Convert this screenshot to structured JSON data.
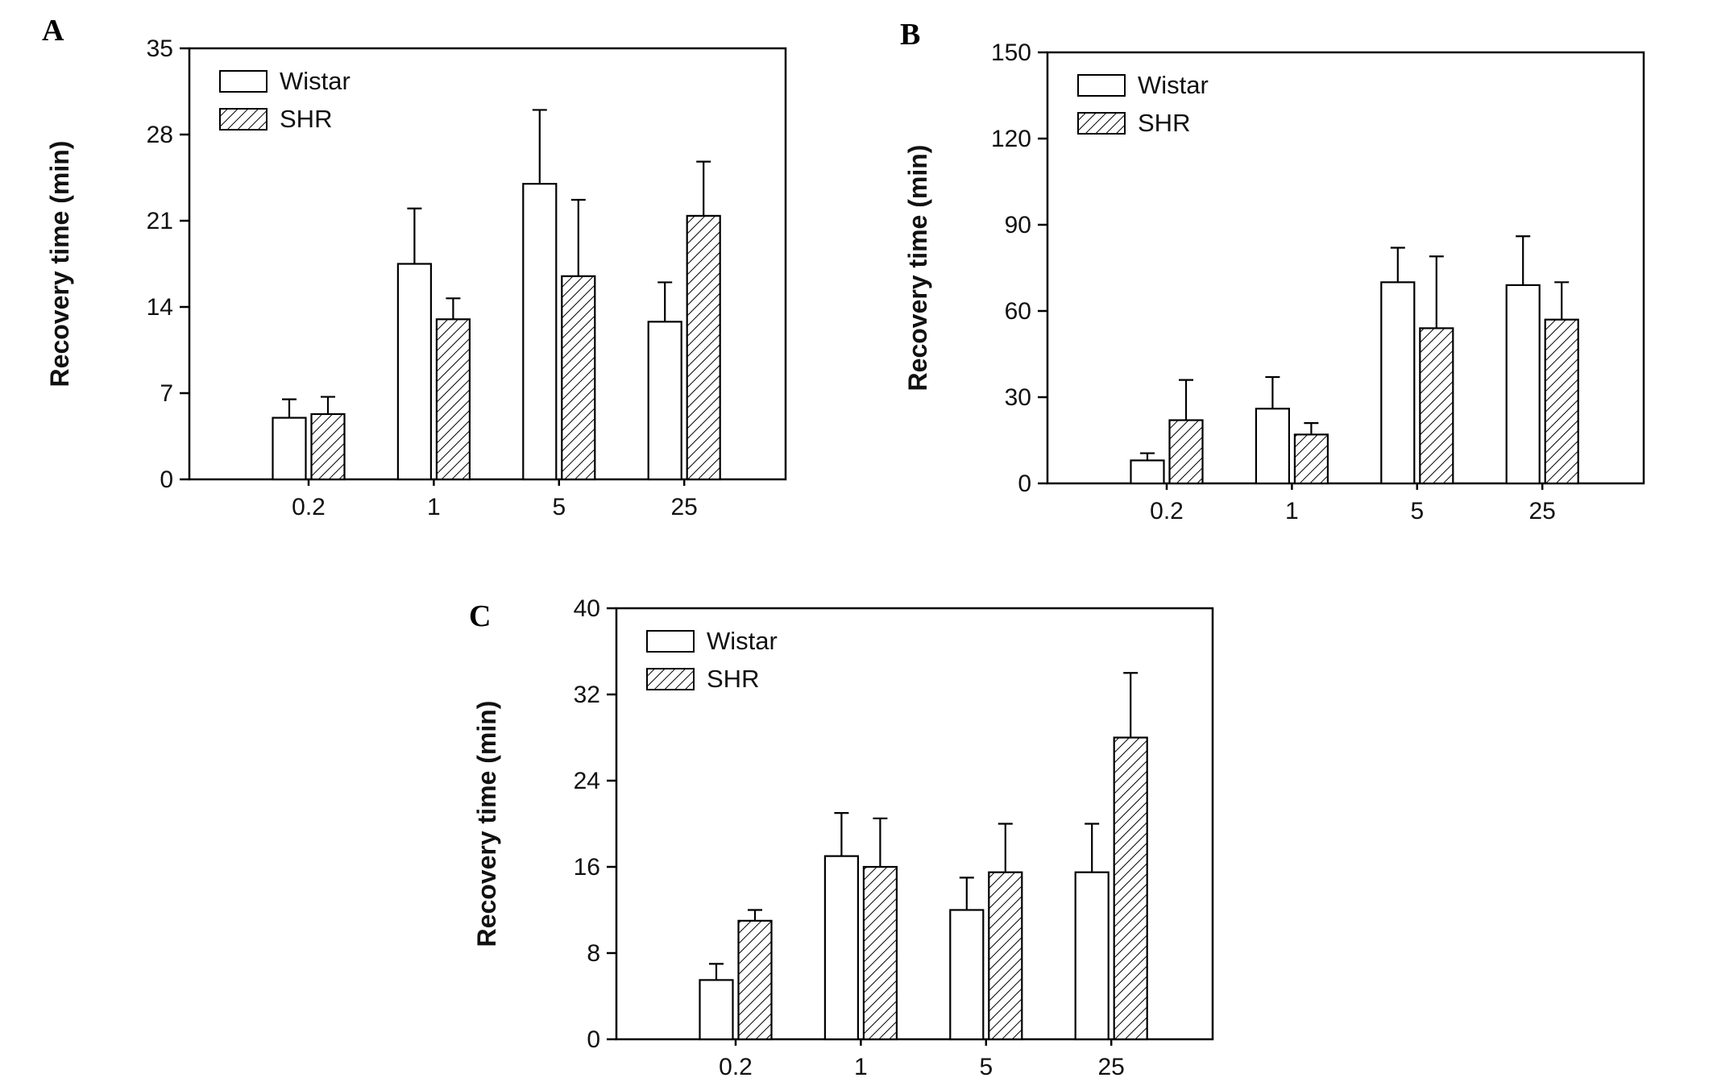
{
  "figure": {
    "panel_labels": [
      "A",
      "B",
      "C"
    ]
  },
  "chart_data": [
    {
      "type": "bar",
      "panel_label": "A",
      "title": "",
      "xlabel": "",
      "ylabel": "Recovery time (min)",
      "ylim": [
        0,
        35
      ],
      "yticks": [
        0,
        7,
        14,
        21,
        28,
        35
      ],
      "categories": [
        "0.2",
        "1",
        "5",
        "25"
      ],
      "legend": [
        "Wistar",
        "SHR"
      ],
      "legend_position": "top-left",
      "grid": false,
      "bar_styles": [
        "open",
        "hatched"
      ],
      "series": [
        {
          "name": "Wistar",
          "style": "open",
          "values": [
            5.0,
            17.5,
            24.0,
            12.8
          ],
          "errors": [
            1.5,
            4.5,
            6.0,
            3.2
          ]
        },
        {
          "name": "SHR",
          "style": "hatched",
          "values": [
            5.3,
            13.0,
            16.5,
            21.4
          ],
          "errors": [
            1.4,
            1.7,
            6.2,
            4.4
          ]
        }
      ]
    },
    {
      "type": "bar",
      "panel_label": "B",
      "title": "",
      "xlabel": "",
      "ylabel": "Recovery time (min)",
      "ylim": [
        0,
        150
      ],
      "yticks": [
        0,
        30,
        60,
        90,
        120,
        150
      ],
      "categories": [
        "0.2",
        "1",
        "5",
        "25"
      ],
      "legend": [
        "Wistar",
        "SHR"
      ],
      "legend_position": "top-left",
      "grid": false,
      "bar_styles": [
        "open",
        "hatched"
      ],
      "series": [
        {
          "name": "Wistar",
          "style": "open",
          "values": [
            8.0,
            26.0,
            70.0,
            69.0
          ],
          "errors": [
            2.5,
            11.0,
            12.0,
            17.0
          ]
        },
        {
          "name": "SHR",
          "style": "hatched",
          "values": [
            22.0,
            17.0,
            54.0,
            57.0
          ],
          "errors": [
            14.0,
            4.0,
            25.0,
            13.0
          ]
        }
      ]
    },
    {
      "type": "bar",
      "panel_label": "C",
      "title": "",
      "xlabel": "",
      "ylabel": "Recovery time (min)",
      "ylim": [
        0,
        40
      ],
      "yticks": [
        0,
        8,
        16,
        24,
        32,
        40
      ],
      "categories": [
        "0.2",
        "1",
        "5",
        "25"
      ],
      "legend": [
        "Wistar",
        "SHR"
      ],
      "legend_position": "top-left",
      "grid": false,
      "bar_styles": [
        "open",
        "hatched"
      ],
      "series": [
        {
          "name": "Wistar",
          "style": "open",
          "values": [
            5.5,
            17.0,
            12.0,
            15.5
          ],
          "errors": [
            1.5,
            4.0,
            3.0,
            4.5
          ]
        },
        {
          "name": "SHR",
          "style": "hatched",
          "values": [
            11.0,
            16.0,
            15.5,
            28.0
          ],
          "errors": [
            1.0,
            4.5,
            4.5,
            6.0
          ]
        }
      ]
    }
  ]
}
